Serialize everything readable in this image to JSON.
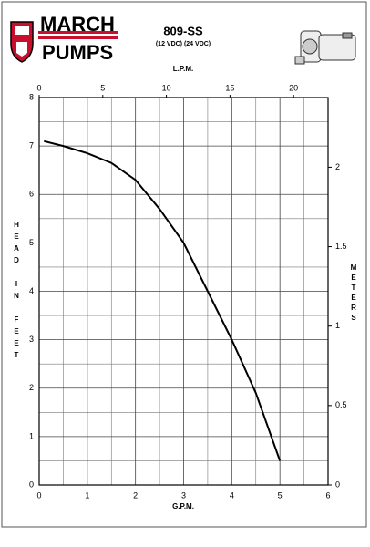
{
  "chart_data": {
    "type": "line",
    "logo": {
      "line1": "MARCH",
      "line2": "PUMPS"
    },
    "title": "809-SS",
    "subtitle": "(12 VDC) (24 VDC)",
    "x_label": "G.P.M.",
    "x2_label": "L.P.M.",
    "y_label": "HEAD IN FEET",
    "y2_label": "METERS",
    "x": [
      0.1,
      0.5,
      1,
      1.5,
      2,
      2.5,
      3,
      3.5,
      4,
      4.5,
      5
    ],
    "series": [
      {
        "color": "#000000",
        "values": [
          7.1,
          7.0,
          6.85,
          6.65,
          6.3,
          5.7,
          5.0,
          4.0,
          3.0,
          1.9,
          0.5
        ]
      }
    ],
    "xlim": [
      0,
      6
    ],
    "xticks": [
      0,
      1,
      2,
      3,
      4,
      5,
      6
    ],
    "x2lim": [
      0,
      22.71
    ],
    "x2ticks": [
      0,
      5,
      10,
      15,
      20
    ],
    "ylim": [
      0,
      8
    ],
    "yticks": [
      0,
      1,
      2,
      3,
      4,
      5,
      6,
      7,
      8
    ],
    "y2lim": [
      0,
      2.4384
    ],
    "y2ticks": [
      0,
      0.5,
      1,
      1.5,
      2
    ],
    "minor_xticks": [
      0.5,
      1.5,
      2.5,
      3.5,
      4.5,
      5.5
    ],
    "minor_yticks": [
      0.5,
      1.5,
      2.5,
      3.5,
      4.5,
      5.5,
      6.5,
      7.5
    ],
    "grid": true
  }
}
